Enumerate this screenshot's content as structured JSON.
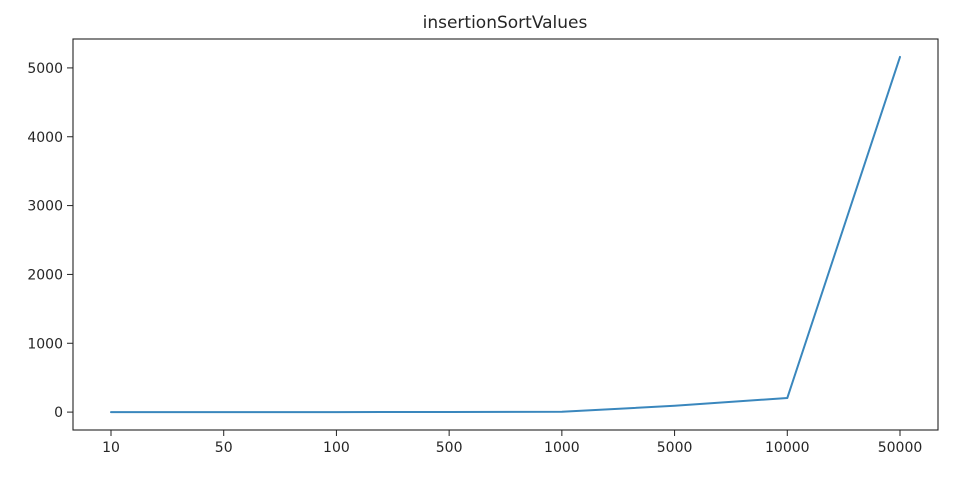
{
  "chart_data": {
    "type": "line",
    "title": "insertionSortValues",
    "xlabel": "",
    "ylabel": "",
    "categories": [
      "10",
      "50",
      "100",
      "500",
      "1000",
      "5000",
      "10000",
      "50000"
    ],
    "series": [
      {
        "values": [
          0,
          0,
          0,
          1,
          4,
          92,
          205,
          5160
        ]
      }
    ],
    "yticks": [
      0,
      1000,
      2000,
      3000,
      4000,
      5000
    ],
    "ylim": [
      -260,
      5420
    ],
    "grid": false,
    "legend": "none",
    "colors": {
      "line": "#3a87bd",
      "axes": "#222222",
      "text": "#262626"
    }
  }
}
